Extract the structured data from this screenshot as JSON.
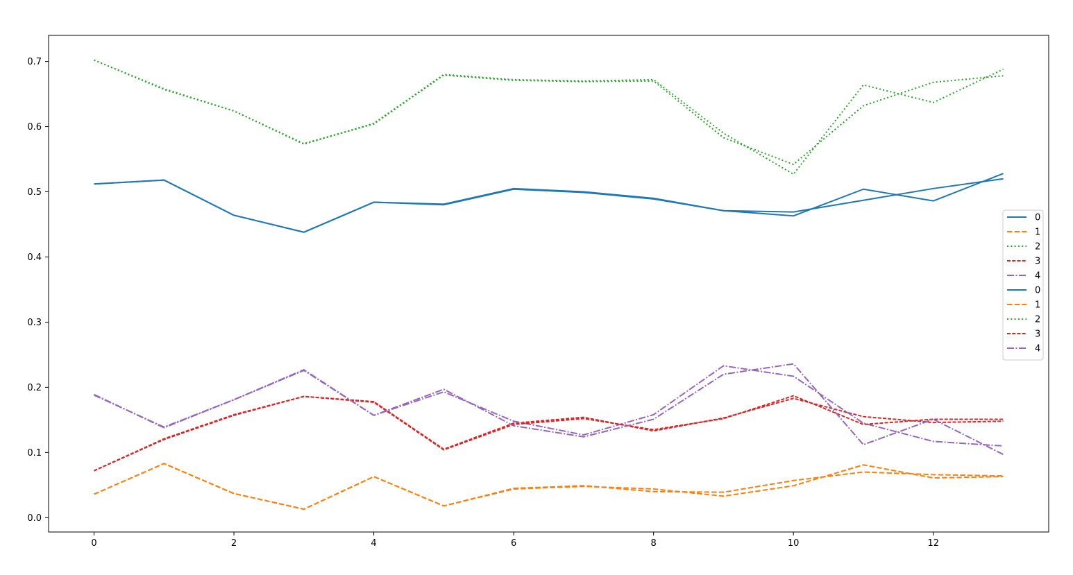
{
  "chart_data": {
    "type": "line",
    "title": "",
    "xlabel": "",
    "ylabel": "",
    "xlim": [
      -0.65,
      13.65
    ],
    "ylim": [
      -0.022,
      0.74
    ],
    "xticks": [
      "0",
      "2",
      "4",
      "6",
      "8",
      "10",
      "12"
    ],
    "yticks": [
      "0.0",
      "0.1",
      "0.2",
      "0.3",
      "0.4",
      "0.5",
      "0.6",
      "0.7"
    ],
    "grid": false,
    "legend_position": "center-right",
    "x": [
      0,
      1,
      2,
      3,
      4,
      5,
      6,
      7,
      8,
      9,
      10,
      11,
      12,
      13
    ],
    "series": [
      {
        "name": "0",
        "color": "#1f77b4",
        "dash": "solid",
        "values": [
          0.512,
          0.518,
          0.464,
          0.438,
          0.484,
          0.481,
          0.505,
          0.5,
          0.49,
          0.471,
          0.469,
          0.487,
          0.505,
          0.52
        ]
      },
      {
        "name": "1",
        "color": "#ff7f0e",
        "dash": "dashed",
        "values": [
          0.036,
          0.083,
          0.037,
          0.013,
          0.063,
          0.018,
          0.045,
          0.049,
          0.04,
          0.039,
          0.057,
          0.07,
          0.066,
          0.064
        ]
      },
      {
        "name": "2",
        "color": "#2ca02c",
        "dash": "dotted",
        "values": [
          0.702,
          0.657,
          0.624,
          0.574,
          0.604,
          0.679,
          0.671,
          0.669,
          0.67,
          0.583,
          0.542,
          0.632,
          0.668,
          0.678
        ]
      },
      {
        "name": "3",
        "color": "#d62728",
        "dash": "densedash",
        "values": [
          0.072,
          0.121,
          0.158,
          0.186,
          0.178,
          0.105,
          0.145,
          0.154,
          0.133,
          0.153,
          0.183,
          0.155,
          0.146,
          0.148
        ]
      },
      {
        "name": "4",
        "color": "#9467bd",
        "dash": "dashdot",
        "values": [
          0.188,
          0.139,
          0.181,
          0.227,
          0.157,
          0.193,
          0.148,
          0.127,
          0.158,
          0.233,
          0.217,
          0.145,
          0.117,
          0.11
        ]
      },
      {
        "name": "0",
        "color": "#1f77b4",
        "dash": "solid",
        "values": [
          0.512,
          0.518,
          0.464,
          0.438,
          0.484,
          0.48,
          0.504,
          0.499,
          0.489,
          0.471,
          0.463,
          0.504,
          0.486,
          0.528
        ]
      },
      {
        "name": "1",
        "color": "#ff7f0e",
        "dash": "dashed",
        "values": [
          0.036,
          0.083,
          0.037,
          0.013,
          0.063,
          0.018,
          0.044,
          0.048,
          0.044,
          0.033,
          0.049,
          0.081,
          0.061,
          0.063
        ]
      },
      {
        "name": "2",
        "color": "#2ca02c",
        "dash": "dotted",
        "values": [
          0.702,
          0.658,
          0.624,
          0.573,
          0.605,
          0.68,
          0.672,
          0.67,
          0.672,
          0.59,
          0.527,
          0.664,
          0.637,
          0.688
        ]
      },
      {
        "name": "3",
        "color": "#d62728",
        "dash": "densedash",
        "values": [
          0.072,
          0.12,
          0.157,
          0.186,
          0.177,
          0.104,
          0.143,
          0.152,
          0.135,
          0.152,
          0.187,
          0.143,
          0.151,
          0.151
        ]
      },
      {
        "name": "4",
        "color": "#9467bd",
        "dash": "dashdot",
        "values": [
          0.189,
          0.138,
          0.181,
          0.226,
          0.157,
          0.197,
          0.141,
          0.124,
          0.151,
          0.22,
          0.236,
          0.112,
          0.151,
          0.097
        ]
      }
    ]
  }
}
